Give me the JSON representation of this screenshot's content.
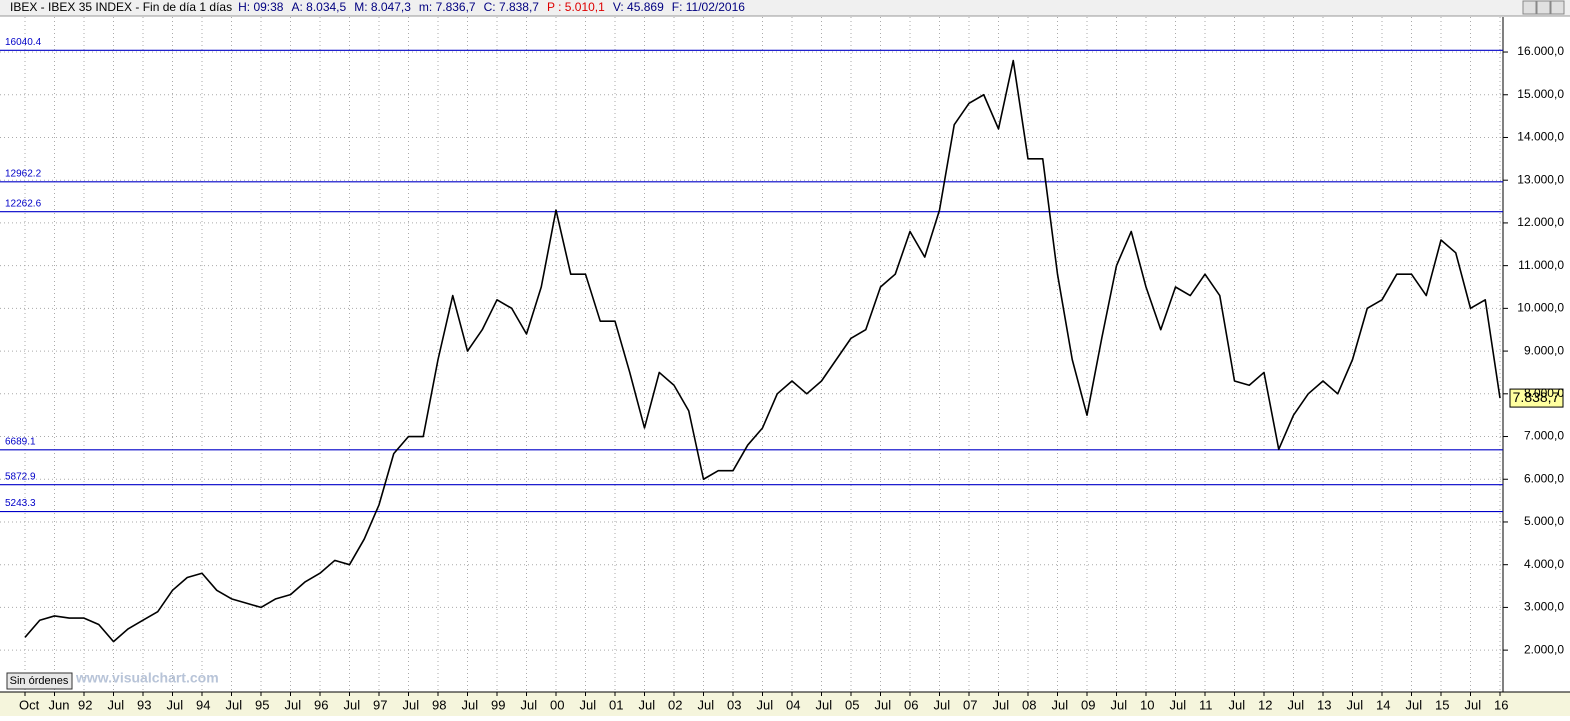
{
  "header": {
    "symbol": "IBEX - IBEX 35 INDEX - Fin de día 1 días",
    "items": [
      "H: 09:38",
      "A: 8.034,5",
      "M: 8.047,3",
      "m: 7.836,7",
      "C: 7.838,7",
      "P : 5.010,1",
      "V: 45.869",
      "F: 11/02/2016"
    ]
  },
  "button": "Sin órdenes",
  "watermark": "www.visualchart.com",
  "last_price_label": "7.838,7",
  "chart_data": {
    "type": "line",
    "categories": [
      "Oct",
      null,
      "Jun",
      null,
      "92",
      null,
      "Jul",
      null,
      "93",
      null,
      "Jul",
      null,
      "94",
      null,
      "Jul",
      null,
      "95",
      null,
      "Jul",
      null,
      "96",
      null,
      "Jul",
      null,
      "97",
      null,
      "Jul",
      null,
      "98",
      null,
      "Jul",
      null,
      "99",
      null,
      "Jul",
      null,
      "00",
      null,
      "Jul",
      null,
      "01",
      null,
      "Jul",
      null,
      "02",
      null,
      "Jul",
      null,
      "03",
      null,
      "Jul",
      null,
      "04",
      null,
      "Jul",
      null,
      "05",
      null,
      "Jul",
      null,
      "06",
      null,
      "Jul",
      null,
      "07",
      null,
      "Jul",
      null,
      "08",
      null,
      "Jul",
      null,
      "09",
      null,
      "Jul",
      null,
      "10",
      null,
      "Jul",
      null,
      "11",
      null,
      "Jul",
      null,
      "12",
      null,
      "Jul",
      null,
      "13",
      null,
      "Jul",
      null,
      "14",
      null,
      "Jul",
      null,
      "15",
      null,
      "Jul",
      null,
      "16"
    ],
    "series": [
      {
        "name": "IBEX 35",
        "color": "#000000",
        "values": [
          2300,
          2700,
          2800,
          2750,
          2750,
          2600,
          2200,
          2500,
          2700,
          2900,
          3400,
          3700,
          3800,
          3400,
          3200,
          3100,
          3000,
          3200,
          3300,
          3600,
          3800,
          4100,
          4000,
          4600,
          5400,
          6600,
          7000,
          7000,
          8800,
          10300,
          9000,
          9500,
          10200,
          10000,
          9400,
          10500,
          12300,
          10800,
          10800,
          9700,
          9700,
          8500,
          7200,
          8500,
          8200,
          7600,
          6000,
          6200,
          6200,
          6800,
          7200,
          8000,
          8300,
          8000,
          8300,
          8800,
          9300,
          9500,
          10500,
          10800,
          11800,
          11200,
          12300,
          14300,
          14800,
          15000,
          14200,
          15800,
          13500,
          13500,
          10800,
          8800,
          7500,
          9300,
          11000,
          11800,
          10500,
          9500,
          10500,
          10300,
          10800,
          10300,
          8300,
          8200,
          8500,
          6700,
          7500,
          8000,
          8300,
          8000,
          8800,
          10000,
          10200,
          10800,
          10800,
          10300,
          11600,
          11300,
          10000,
          10200,
          7900
        ]
      }
    ],
    "levels": [
      16040.4,
      12962.2,
      12262.6,
      6689.1,
      5872.9,
      5243.3
    ],
    "level_color": "#0000c8",
    "ylim": [
      1020,
      16820
    ],
    "yticks": [
      {
        "value": 2000,
        "label": "2.000,0"
      },
      {
        "value": 3000,
        "label": "3.000,0"
      },
      {
        "value": 4000,
        "label": "4.000,0"
      },
      {
        "value": 5000,
        "label": "5.000,0"
      },
      {
        "value": 6000,
        "label": "6.000,0"
      },
      {
        "value": 7000,
        "label": "7.000,0"
      },
      {
        "value": 8000,
        "label": "8.000,0"
      },
      {
        "value": 9000,
        "label": "9.000,0"
      },
      {
        "value": 10000,
        "label": "10.000,0"
      },
      {
        "value": 11000,
        "label": "11.000,0"
      },
      {
        "value": 12000,
        "label": "12.000,0"
      },
      {
        "value": 13000,
        "label": "13.000,0"
      },
      {
        "value": 14000,
        "label": "14.000,0"
      },
      {
        "value": 15000,
        "label": "15.000,0"
      },
      {
        "value": 16000,
        "label": "16.000,0"
      }
    ],
    "grid": true
  }
}
